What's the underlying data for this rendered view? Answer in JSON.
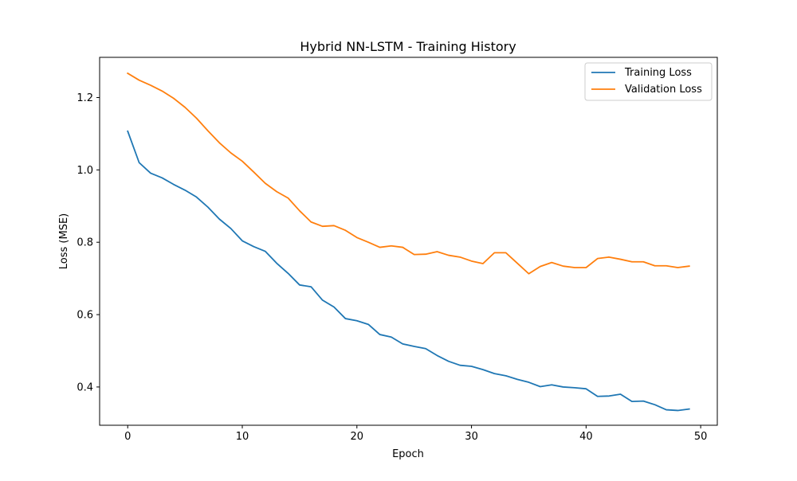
{
  "chart_data": {
    "type": "line",
    "title": "Hybrid NN-LSTM - Training History",
    "xlabel": "Epoch",
    "ylabel": "Loss (MSE)",
    "xlim": [
      -2.45,
      51.45
    ],
    "ylim": [
      0.2942,
      1.3111
    ],
    "xticks": [
      0,
      10,
      20,
      30,
      40,
      50
    ],
    "yticks": [
      0.4,
      0.6,
      0.8,
      1.0,
      1.2
    ],
    "xtick_labels": [
      "0",
      "10",
      "20",
      "30",
      "40",
      "50"
    ],
    "ytick_labels": [
      "0.4",
      "0.6",
      "0.8",
      "1.0",
      "1.2"
    ],
    "grid": false,
    "legend_position": "top-right",
    "x": [
      0,
      1,
      2,
      3,
      4,
      5,
      6,
      7,
      8,
      9,
      10,
      11,
      12,
      13,
      14,
      15,
      16,
      17,
      18,
      19,
      20,
      21,
      22,
      23,
      24,
      25,
      26,
      27,
      28,
      29,
      30,
      31,
      32,
      33,
      34,
      35,
      36,
      37,
      38,
      39,
      40,
      41,
      42,
      43,
      44,
      45,
      46,
      47,
      48,
      49
    ],
    "series": [
      {
        "name": "Training Loss",
        "color": "#1f77b4",
        "values": [
          1.107,
          1.02,
          0.991,
          0.978,
          0.96,
          0.944,
          0.925,
          0.897,
          0.864,
          0.838,
          0.804,
          0.788,
          0.775,
          0.742,
          0.714,
          0.682,
          0.677,
          0.64,
          0.621,
          0.589,
          0.583,
          0.573,
          0.545,
          0.538,
          0.519,
          0.512,
          0.506,
          0.487,
          0.471,
          0.46,
          0.457,
          0.448,
          0.437,
          0.431,
          0.421,
          0.413,
          0.401,
          0.406,
          0.4,
          0.398,
          0.395,
          0.374,
          0.375,
          0.38,
          0.36,
          0.361,
          0.351,
          0.337,
          0.335,
          0.339
        ]
      },
      {
        "name": "Validation Loss",
        "color": "#ff7f0e",
        "values": [
          1.267,
          1.248,
          1.234,
          1.218,
          1.198,
          1.173,
          1.143,
          1.108,
          1.075,
          1.047,
          1.024,
          0.994,
          0.963,
          0.94,
          0.922,
          0.887,
          0.856,
          0.844,
          0.846,
          0.833,
          0.813,
          0.8,
          0.786,
          0.79,
          0.786,
          0.766,
          0.767,
          0.774,
          0.764,
          0.759,
          0.748,
          0.741,
          0.771,
          0.771,
          0.742,
          0.713,
          0.733,
          0.744,
          0.734,
          0.73,
          0.73,
          0.755,
          0.759,
          0.753,
          0.746,
          0.746,
          0.735,
          0.735,
          0.73,
          0.734
        ]
      }
    ]
  }
}
